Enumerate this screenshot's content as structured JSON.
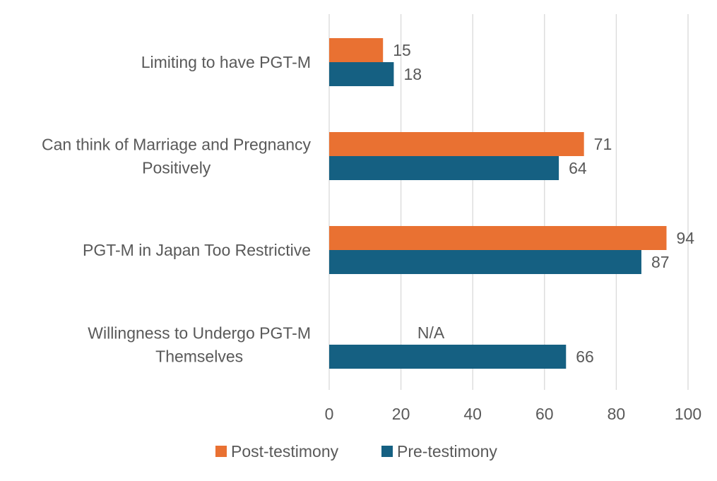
{
  "chart_data": {
    "type": "bar",
    "orientation": "horizontal",
    "categories": [
      [
        "Limiting to have PGT-M"
      ],
      [
        "Can think of Marriage and Pregnancy",
        "Positively"
      ],
      [
        "PGT-M in Japan Too Restrictive"
      ],
      [
        "Willingness to Undergo PGT-M",
        "Themselves"
      ]
    ],
    "series": [
      {
        "name": "Post-testimony",
        "color": "#E97132",
        "values": [
          15,
          71,
          94,
          null
        ],
        "labels": [
          "15",
          "71",
          "94",
          "N/A"
        ]
      },
      {
        "name": "Pre-testimony",
        "color": "#156082",
        "values": [
          18,
          64,
          87,
          66
        ],
        "labels": [
          "18",
          "64",
          "87",
          "66"
        ]
      }
    ],
    "xlim": [
      0,
      100
    ],
    "xticks": [
      0,
      20,
      40,
      60,
      80,
      100
    ],
    "grid": true,
    "legend_position": "bottom",
    "title": "",
    "xlabel": "",
    "ylabel": ""
  }
}
